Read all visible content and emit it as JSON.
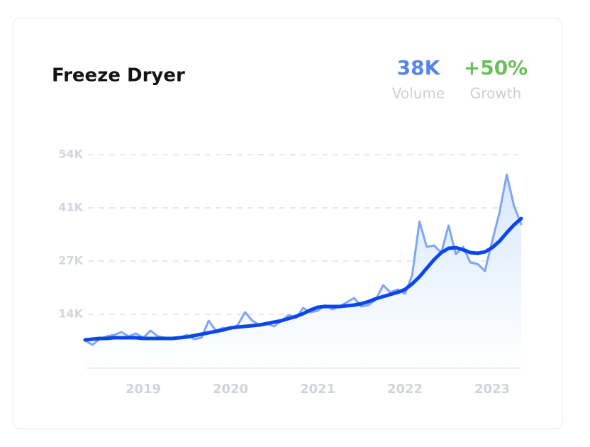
{
  "chart_data": {
    "type": "line",
    "title": "Freeze Dryer",
    "stats": [
      {
        "value": "38K",
        "label": "Volume",
        "color": "#5584ea"
      },
      {
        "value": "+50%",
        "label": "Growth",
        "color": "#6cbd5b"
      }
    ],
    "x": [
      2018.333,
      2018.417,
      2018.5,
      2018.583,
      2018.667,
      2018.75,
      2018.833,
      2018.917,
      2019,
      2019.083,
      2019.167,
      2019.25,
      2019.333,
      2019.417,
      2019.5,
      2019.583,
      2019.667,
      2019.75,
      2019.833,
      2019.917,
      2020,
      2020.083,
      2020.167,
      2020.25,
      2020.333,
      2020.417,
      2020.5,
      2020.583,
      2020.667,
      2020.75,
      2020.833,
      2020.917,
      2021,
      2021.083,
      2021.167,
      2021.25,
      2021.333,
      2021.417,
      2021.5,
      2021.583,
      2021.667,
      2021.75,
      2021.833,
      2021.917,
      2022,
      2022.083,
      2022.167,
      2022.25,
      2022.333,
      2022.417,
      2022.5,
      2022.583,
      2022.667,
      2022.75,
      2022.833,
      2022.917,
      2023,
      2023.083,
      2023.167,
      2023.25,
      2023.333
    ],
    "series": [
      {
        "role": "raw",
        "color": "#7fa5f3",
        "values": [
          6840,
          5760,
          7200,
          7920,
          8280,
          9000,
          7920,
          8640,
          7560,
          9360,
          7920,
          7560,
          7380,
          7560,
          8280,
          7200,
          7560,
          11880,
          9360,
          10080,
          9720,
          10800,
          14040,
          11880,
          10800,
          11160,
          10440,
          11880,
          13320,
          12600,
          15120,
          14040,
          14400,
          15840,
          14760,
          15480,
          16560,
          17640,
          15480,
          15840,
          17280,
          20880,
          19080,
          19800,
          18720,
          23400,
          37080,
          30600,
          30960,
          29160,
          36000,
          28800,
          30600,
          26640,
          26280,
          24480,
          32040,
          39240,
          48960,
          41040,
          36360
        ]
      },
      {
        "role": "trend",
        "color": "#0b45f0",
        "values": [
          7020,
          7200,
          7380,
          7380,
          7560,
          7560,
          7560,
          7560,
          7380,
          7380,
          7380,
          7380,
          7380,
          7560,
          7740,
          8100,
          8460,
          8820,
          9180,
          9540,
          10080,
          10260,
          10440,
          10620,
          10800,
          11160,
          11520,
          11880,
          12420,
          12960,
          13680,
          14580,
          15300,
          15480,
          15480,
          15480,
          15660,
          15840,
          16200,
          16740,
          17460,
          18000,
          18540,
          19080,
          19800,
          21240,
          23040,
          25200,
          27360,
          29160,
          30240,
          30420,
          29880,
          29160,
          28980,
          29340,
          30420,
          32040,
          34200,
          36180,
          37800
        ]
      }
    ],
    "xlim": [
      2018.333,
      2023.333
    ],
    "xticks": [
      2019,
      2020,
      2021,
      2022,
      2023
    ],
    "ylim": [
      0,
      54000
    ],
    "yticks": [
      {
        "value": 13500,
        "label": "14K"
      },
      {
        "value": 27000,
        "label": "27K"
      },
      {
        "value": 40500,
        "label": "41K"
      },
      {
        "value": 54000,
        "label": "54K"
      }
    ],
    "grid": true
  }
}
